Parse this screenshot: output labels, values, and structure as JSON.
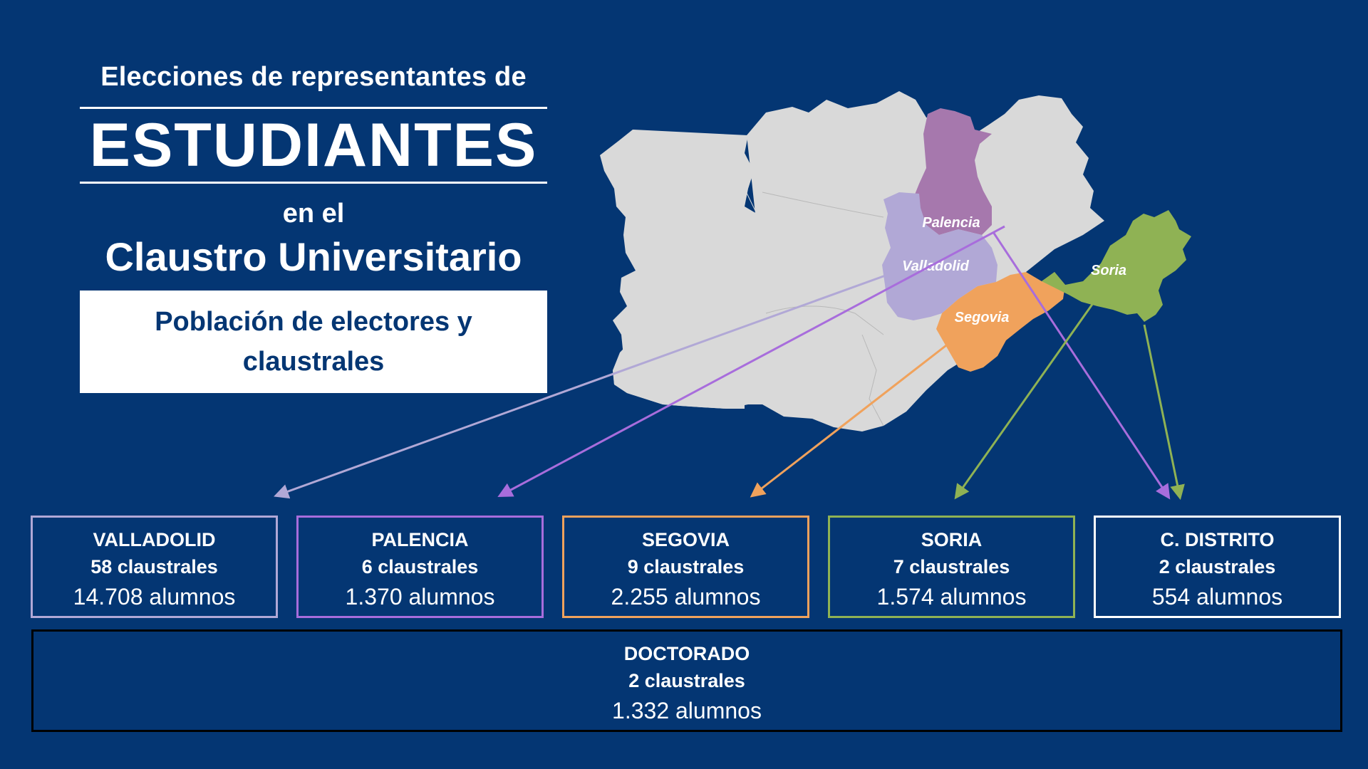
{
  "title": {
    "line1": "Elecciones de representantes de",
    "main": "ESTUDIANTES",
    "line3": "en el",
    "line4": "Claustro Universitario"
  },
  "box_label": "Población de electores y claustrales",
  "map": {
    "labels": {
      "palencia": "Palencia",
      "valladolid": "Valladolid",
      "segovia": "Segovia",
      "soria": "Soria"
    },
    "colors": {
      "background": "#043673",
      "base": "#d9d9d9",
      "palencia": "#a678ad",
      "valladolid": "#b1a8d6",
      "segovia": "#f0a25c",
      "soria": "#8fb254",
      "arrow_valladolid": "#b1a8d6",
      "arrow_palencia": "#a86ddc",
      "arrow_segovia": "#f0a25c",
      "arrow_soria": "#8fb254"
    }
  },
  "campuses": [
    {
      "name": "VALLADOLID",
      "claustrales": "58 claustrales",
      "alumnos": "14.708 alumnos",
      "color": "#b1a8d6"
    },
    {
      "name": "PALENCIA",
      "claustrales": "6 claustrales",
      "alumnos": "1.370 alumnos",
      "color": "#a86ddc"
    },
    {
      "name": "SEGOVIA",
      "claustrales": "9 claustrales",
      "alumnos": "2.255 alumnos",
      "color": "#f0a25c"
    },
    {
      "name": "SORIA",
      "claustrales": "7 claustrales",
      "alumnos": "1.574 alumnos",
      "color": "#8fb254"
    },
    {
      "name": "C. DISTRITO",
      "claustrales": "2 claustrales",
      "alumnos": "554 alumnos",
      "color": "#ffffff"
    }
  ],
  "doctorado": {
    "name": "DOCTORADO",
    "claustrales": "2 claustrales",
    "alumnos": "1.332 alumnos"
  }
}
